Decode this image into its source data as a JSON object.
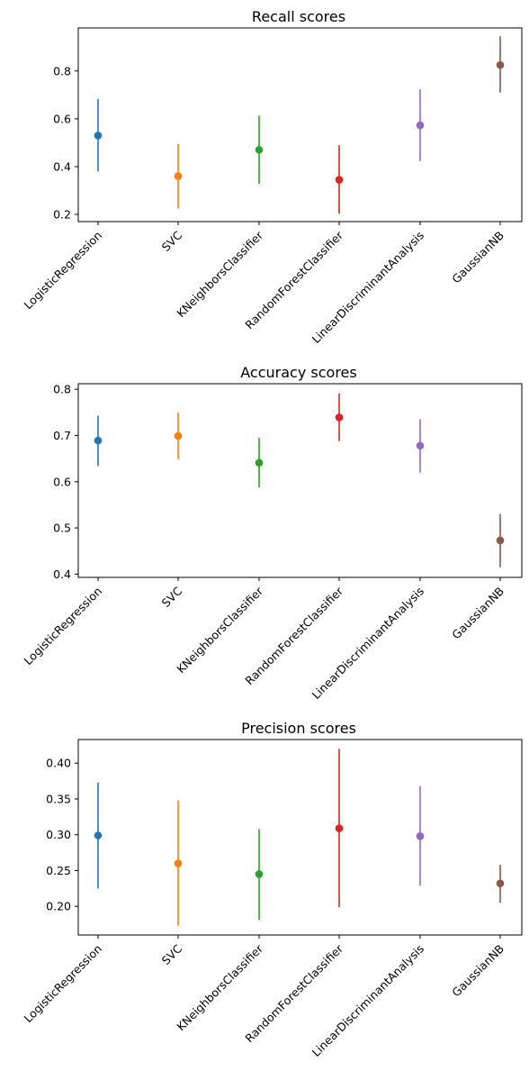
{
  "chart_data": [
    {
      "type": "scatter",
      "title": "Recall scores",
      "categories": [
        "LogisticRegression",
        "SVC",
        "KNeighborsClassifier",
        "RandomForestClassifier",
        "LinearDiscriminantAnalysis",
        "GaussianNB"
      ],
      "values": [
        0.53,
        0.36,
        0.47,
        0.345,
        0.573,
        0.825
      ],
      "error_low": [
        0.38,
        0.225,
        0.328,
        0.203,
        0.423,
        0.71
      ],
      "error_high": [
        0.683,
        0.495,
        0.613,
        0.49,
        0.723,
        0.945
      ],
      "ylim": [
        0.17,
        0.98
      ],
      "yticks": [
        0.2,
        0.4,
        0.6,
        0.8
      ],
      "ytick_labels": [
        "0.2",
        "0.4",
        "0.6",
        "0.8"
      ],
      "grid": false
    },
    {
      "type": "scatter",
      "title": "Accuracy scores",
      "categories": [
        "LogisticRegression",
        "SVC",
        "KNeighborsClassifier",
        "RandomForestClassifier",
        "LinearDiscriminantAnalysis",
        "GaussianNB"
      ],
      "values": [
        0.689,
        0.699,
        0.641,
        0.739,
        0.678,
        0.473
      ],
      "error_low": [
        0.634,
        0.649,
        0.588,
        0.688,
        0.62,
        0.415
      ],
      "error_high": [
        0.743,
        0.749,
        0.695,
        0.791,
        0.735,
        0.53
      ],
      "ylim": [
        0.393,
        0.812
      ],
      "yticks": [
        0.4,
        0.5,
        0.6,
        0.7,
        0.8
      ],
      "ytick_labels": [
        "0.4",
        "0.5",
        "0.6",
        "0.7",
        "0.8"
      ],
      "grid": false
    },
    {
      "type": "scatter",
      "title": "Precision scores",
      "categories": [
        "LogisticRegression",
        "SVC",
        "KNeighborsClassifier",
        "RandomForestClassifier",
        "LinearDiscriminantAnalysis",
        "GaussianNB"
      ],
      "values": [
        0.299,
        0.26,
        0.245,
        0.309,
        0.298,
        0.232
      ],
      "error_low": [
        0.225,
        0.173,
        0.181,
        0.199,
        0.229,
        0.205
      ],
      "error_high": [
        0.373,
        0.348,
        0.308,
        0.42,
        0.368,
        0.258
      ],
      "ylim": [
        0.16,
        0.433
      ],
      "yticks": [
        0.2,
        0.25,
        0.3,
        0.35,
        0.4
      ],
      "ytick_labels": [
        "0.20",
        "0.25",
        "0.30",
        "0.35",
        "0.40"
      ],
      "grid": false
    }
  ],
  "colors": [
    "#1f77b4",
    "#ff7f0e",
    "#2ca02c",
    "#d62728",
    "#9467bd",
    "#8c564b"
  ]
}
